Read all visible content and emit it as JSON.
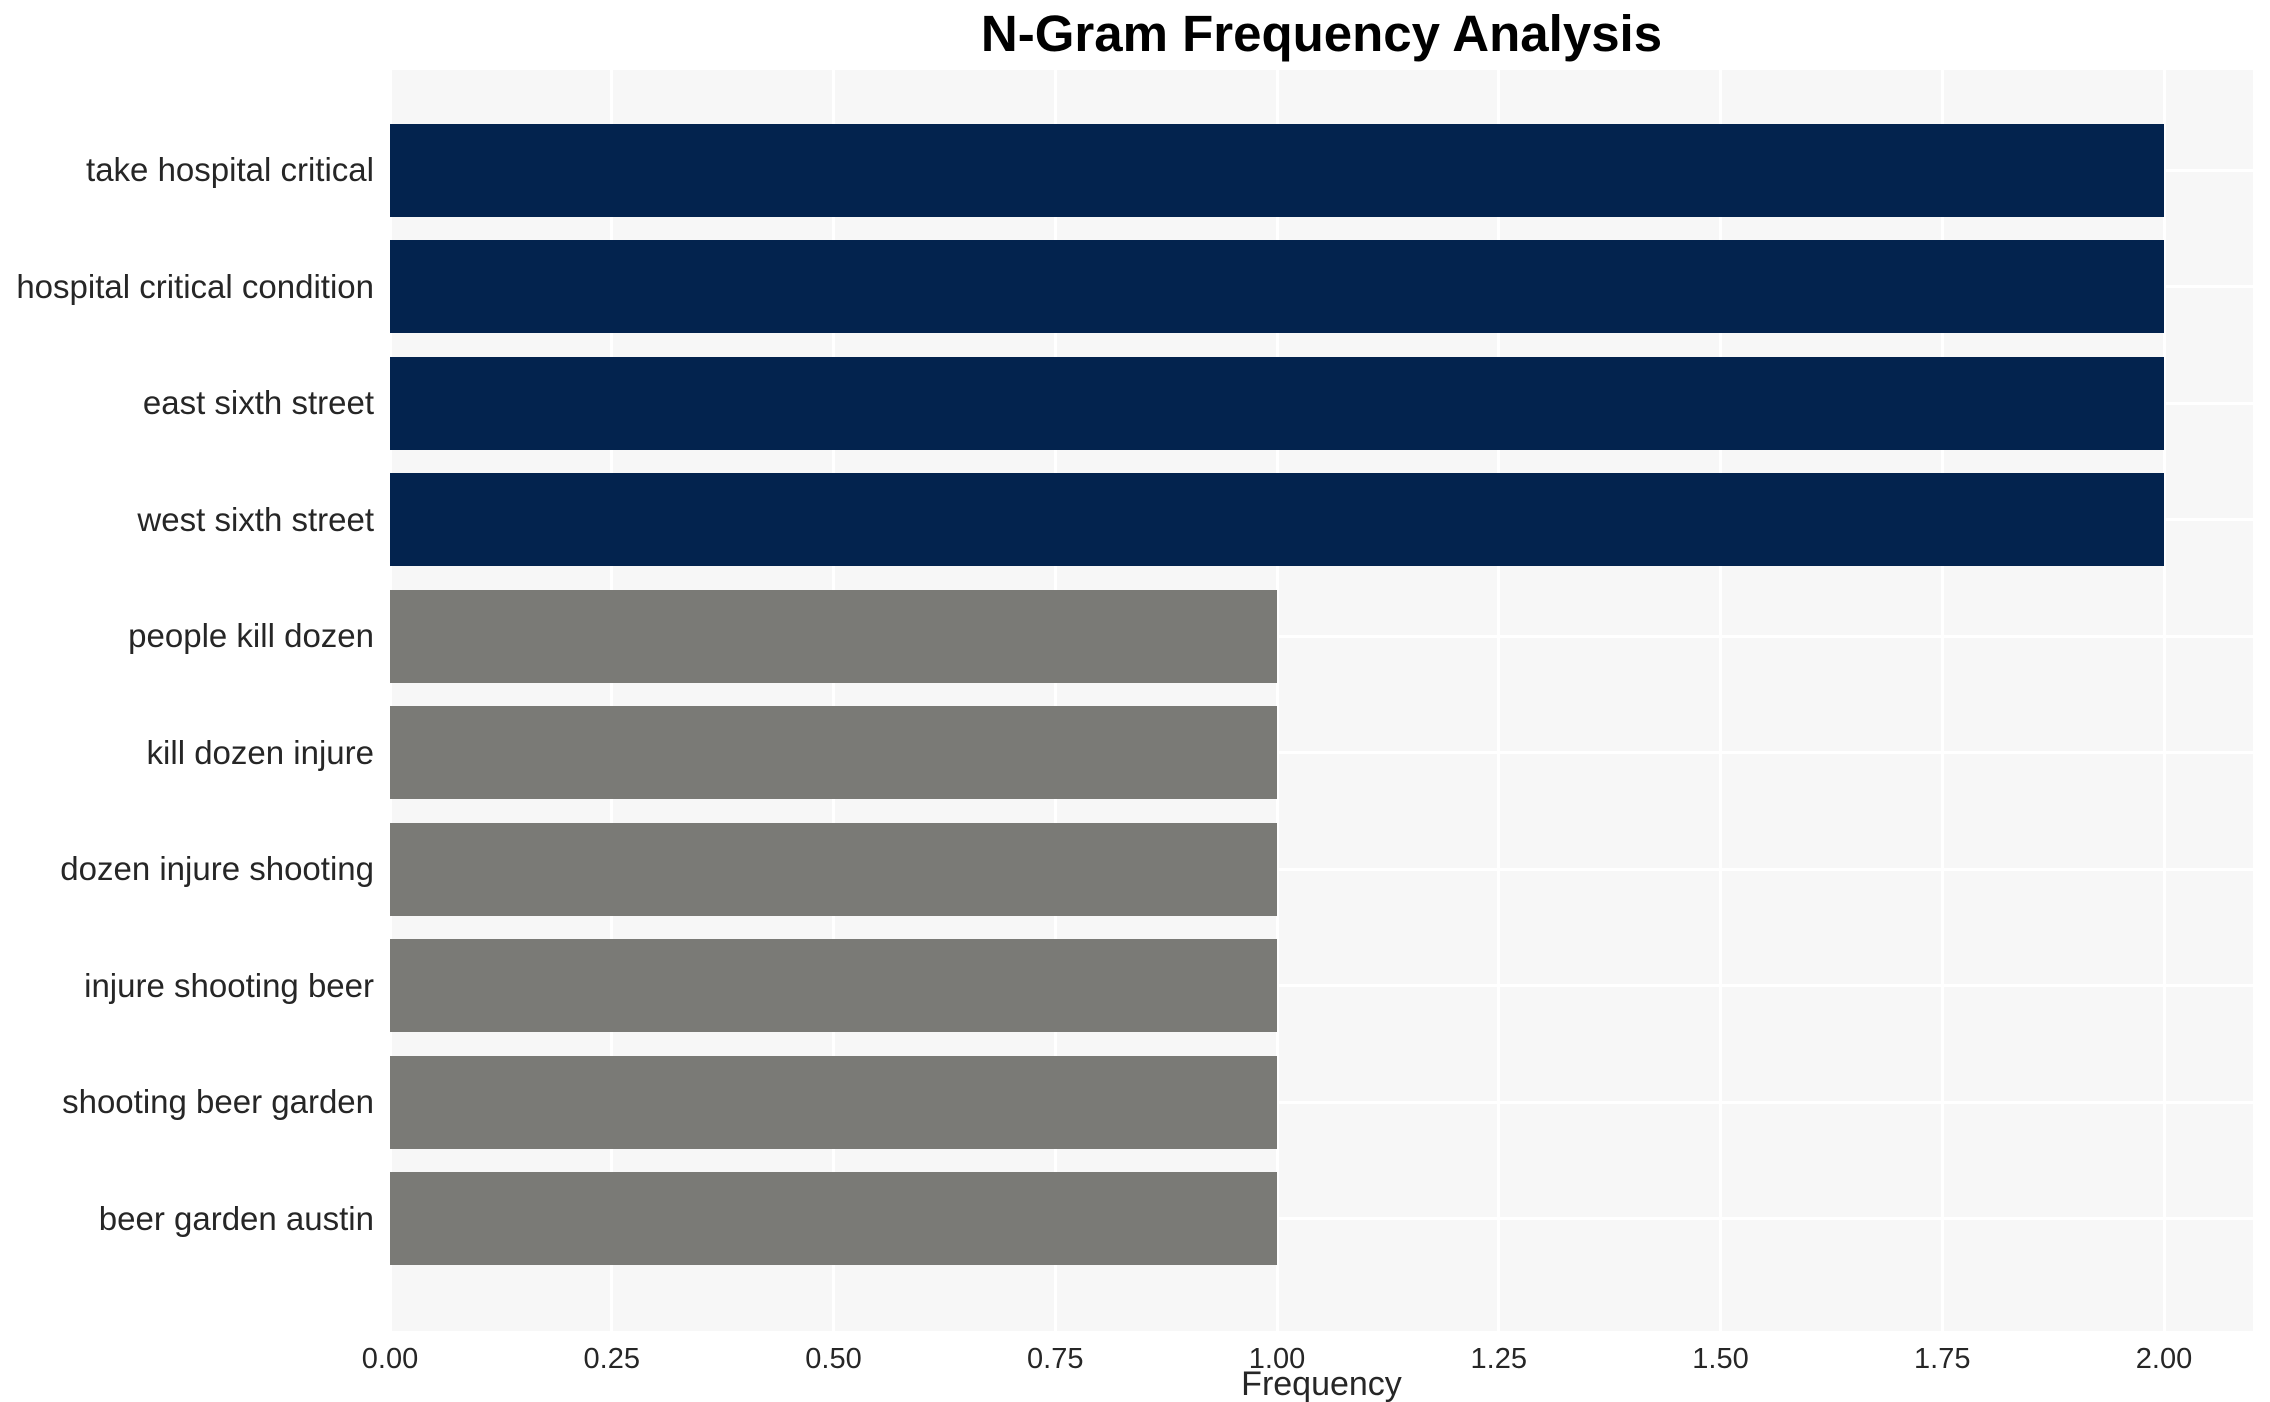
{
  "chart_data": {
    "type": "bar",
    "orientation": "horizontal",
    "title": "N-Gram Frequency Analysis",
    "xlabel": "Frequency",
    "ylabel": "",
    "categories": [
      "take hospital critical",
      "hospital critical condition",
      "east sixth street",
      "west sixth street",
      "people kill dozen",
      "kill dozen injure",
      "dozen injure shooting",
      "injure shooting beer",
      "shooting beer garden",
      "beer garden austin"
    ],
    "values": [
      2,
      2,
      2,
      2,
      1,
      1,
      1,
      1,
      1,
      1
    ],
    "bar_colors": [
      "#03234e",
      "#03234e",
      "#03234e",
      "#03234e",
      "#7a7a76",
      "#7a7a76",
      "#7a7a76",
      "#7a7a76",
      "#7a7a76",
      "#7a7a76"
    ],
    "xlim": [
      0,
      2.1
    ],
    "xticks": [
      0,
      0.25,
      0.5,
      0.75,
      1.0,
      1.25,
      1.5,
      1.75,
      2.0
    ],
    "xtick_labels": [
      "0.00",
      "0.25",
      "0.50",
      "0.75",
      "1.00",
      "1.25",
      "1.50",
      "1.75",
      "2.00"
    ],
    "grid": "white gridlines on light-gray plot background; vertical lines at x ticks, horizontal lines at category centers",
    "legend": "none",
    "colors": {
      "plot_background": "#f7f7f7",
      "gridline": "#ffffff",
      "bar_high": "#03234e",
      "bar_low": "#7a7a76",
      "tick_text": "#262626",
      "title_text": "#000000"
    }
  }
}
